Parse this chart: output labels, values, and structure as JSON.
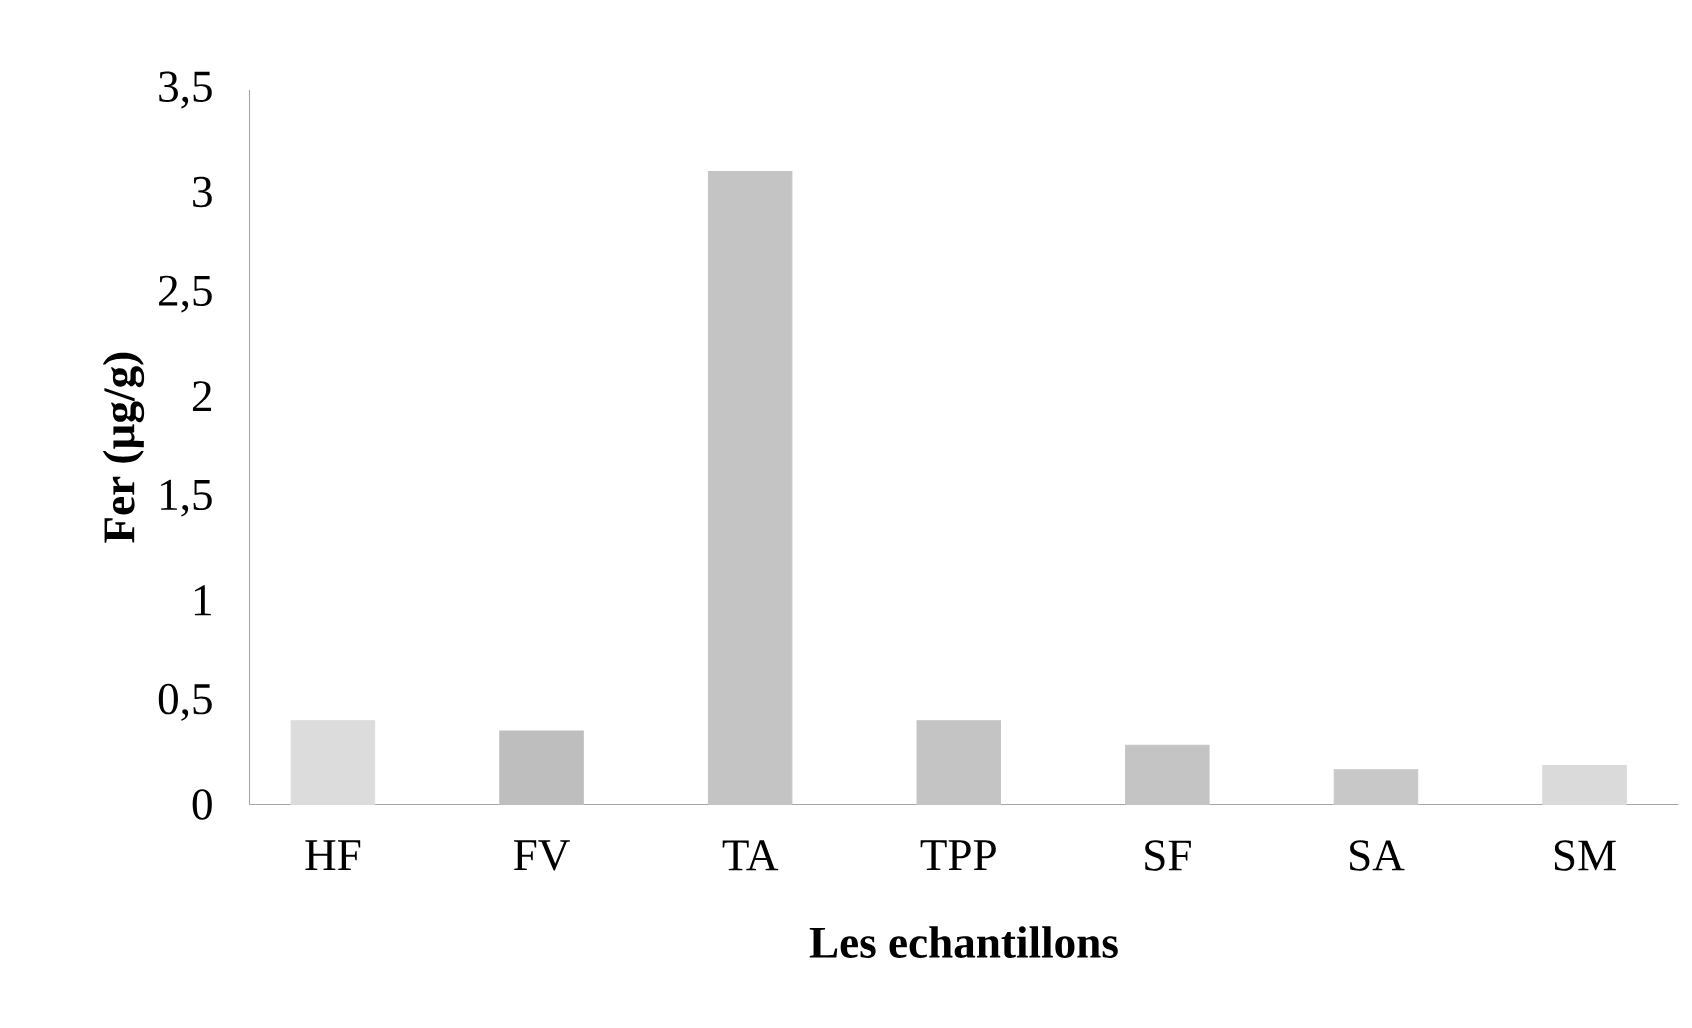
{
  "chart_data": {
    "type": "bar",
    "xlabel": "Les echantillons",
    "ylabel": "Fer (µg/g)",
    "categories": [
      "HF",
      "FV",
      "TA",
      "TPP",
      "SF",
      "SA",
      "SM"
    ],
    "values": [
      0.41,
      0.36,
      3.1,
      0.41,
      0.29,
      0.17,
      0.19
    ],
    "colors": [
      "#dcdcdc",
      "#bebebe",
      "#c4c4c4",
      "#c4c4c4",
      "#c4c4c4",
      "#c8c8c8",
      "#dadada"
    ],
    "ylim": [
      0,
      3.5
    ],
    "yticks": [
      0,
      {
        "value": 0.5,
        "label": "0,5"
      },
      1,
      {
        "value": 1.5,
        "label": "1,5"
      },
      2,
      {
        "value": 2.5,
        "label": "2,5"
      },
      3,
      {
        "value": 3.5,
        "label": "3,5"
      }
    ]
  }
}
